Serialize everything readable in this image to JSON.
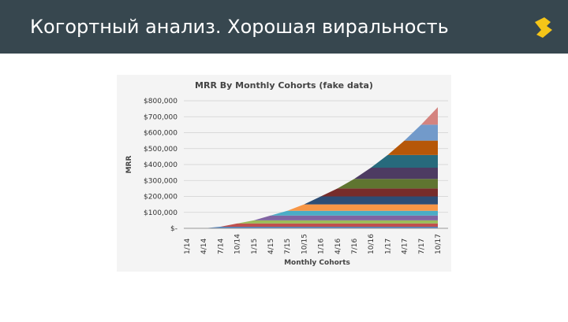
{
  "header": {
    "title": "Когортный анализ. Хорошая виральность"
  },
  "chart_data": {
    "type": "stacked-area",
    "title": "MRR By Monthly Cohorts (fake data)",
    "y_label": "MRR",
    "x_label": "Monthly Cohorts",
    "categories": [
      "1/14",
      "4/14",
      "7/14",
      "10/14",
      "1/15",
      "4/15",
      "7/15",
      "10/15",
      "1/16",
      "4/16",
      "7/16",
      "10/16",
      "1/17",
      "4/17",
      "7/17",
      "10/17"
    ],
    "ylim": [
      0,
      800000
    ],
    "yticks": [
      {
        "value": 0,
        "label": "$-"
      },
      {
        "value": 100000,
        "label": "$100,000"
      },
      {
        "value": 200000,
        "label": "$200,000"
      },
      {
        "value": 300000,
        "label": "$300,000"
      },
      {
        "value": 400000,
        "label": "$400,000"
      },
      {
        "value": 500000,
        "label": "$500,000"
      },
      {
        "value": 600000,
        "label": "$600,000"
      },
      {
        "value": 700000,
        "label": "$700,000"
      },
      {
        "value": 800000,
        "label": "$800,000"
      }
    ],
    "grid": true,
    "series": [
      {
        "color": "#4f81bd",
        "values": [
          null,
          null,
          10000,
          10000,
          10000,
          10000,
          10000,
          10000,
          10000,
          10000,
          10000,
          10000,
          10000,
          10000,
          10000,
          10000
        ]
      },
      {
        "color": "#c0504d",
        "values": [
          null,
          null,
          null,
          20000,
          20000,
          20000,
          20000,
          20000,
          20000,
          20000,
          20000,
          20000,
          20000,
          20000,
          20000,
          20000
        ]
      },
      {
        "color": "#9bbb59",
        "values": [
          null,
          null,
          null,
          null,
          20000,
          20000,
          20000,
          20000,
          20000,
          20000,
          20000,
          20000,
          20000,
          20000,
          20000,
          20000
        ]
      },
      {
        "color": "#8064a2",
        "values": [
          null,
          null,
          null,
          null,
          null,
          30000,
          30000,
          30000,
          30000,
          30000,
          30000,
          30000,
          30000,
          30000,
          30000,
          30000
        ]
      },
      {
        "color": "#4bacc6",
        "values": [
          null,
          null,
          null,
          null,
          null,
          null,
          30000,
          30000,
          30000,
          30000,
          30000,
          30000,
          30000,
          30000,
          30000,
          30000
        ]
      },
      {
        "color": "#f79646",
        "values": [
          null,
          null,
          null,
          null,
          null,
          null,
          null,
          40000,
          40000,
          40000,
          40000,
          40000,
          40000,
          40000,
          40000,
          40000
        ]
      },
      {
        "color": "#2c4d75",
        "values": [
          null,
          null,
          null,
          null,
          null,
          null,
          null,
          null,
          50000,
          50000,
          50000,
          50000,
          50000,
          50000,
          50000,
          50000
        ]
      },
      {
        "color": "#772c2a",
        "values": [
          null,
          null,
          null,
          null,
          null,
          null,
          null,
          null,
          null,
          50000,
          50000,
          50000,
          50000,
          50000,
          50000,
          50000
        ]
      },
      {
        "color": "#5f7530",
        "values": [
          null,
          null,
          null,
          null,
          null,
          null,
          null,
          null,
          null,
          null,
          60000,
          60000,
          60000,
          60000,
          60000,
          60000
        ]
      },
      {
        "color": "#4d3b62",
        "values": [
          null,
          null,
          null,
          null,
          null,
          null,
          null,
          null,
          null,
          null,
          null,
          70000,
          70000,
          70000,
          70000,
          70000
        ]
      },
      {
        "color": "#276a7c",
        "values": [
          null,
          null,
          null,
          null,
          null,
          null,
          null,
          null,
          null,
          null,
          null,
          null,
          80000,
          80000,
          80000,
          80000
        ]
      },
      {
        "color": "#b65708",
        "values": [
          null,
          null,
          null,
          null,
          null,
          null,
          null,
          null,
          null,
          null,
          null,
          null,
          null,
          90000,
          90000,
          90000
        ]
      },
      {
        "color": "#729aca",
        "values": [
          null,
          null,
          null,
          null,
          null,
          null,
          null,
          null,
          null,
          null,
          null,
          null,
          null,
          null,
          100000,
          100000
        ]
      },
      {
        "color": "#d4837f",
        "values": [
          null,
          null,
          null,
          null,
          null,
          null,
          null,
          null,
          null,
          null,
          null,
          null,
          null,
          null,
          null,
          110000
        ]
      }
    ]
  }
}
